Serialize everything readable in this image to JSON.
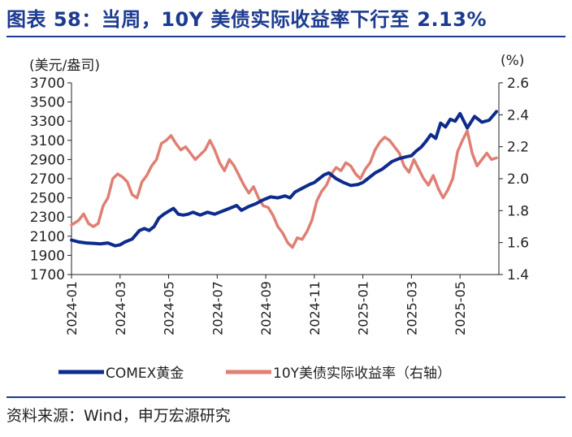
{
  "header": {
    "title": "图表 58：当周，10Y 美债实际收益率下行至 2.13%"
  },
  "footer": {
    "source": "资料来源：Wind，申万宏源研究"
  },
  "chart_data": {
    "type": "line",
    "title": "当周，10Y 美债实际收益率下行至 2.13%",
    "left_axis": {
      "unit": "(美元/盎司)",
      "ylim": [
        1700,
        3700
      ],
      "ticks": [
        1700,
        1900,
        2100,
        2300,
        2500,
        2700,
        2900,
        3100,
        3300,
        3500,
        3700
      ]
    },
    "right_axis": {
      "unit": "(%)",
      "ylim": [
        1.4,
        2.6
      ],
      "ticks": [
        "1.4",
        "1.6",
        "1.8",
        "2.0",
        "2.2",
        "2.4",
        "2.6"
      ]
    },
    "x_ticks": [
      "2024-01",
      "2024-03",
      "2024-05",
      "2024-07",
      "2024-09",
      "2024-11",
      "2025-01",
      "2025-03",
      "2025-05"
    ],
    "x_range_months": [
      0,
      17.6
    ],
    "series": [
      {
        "name": "COMEX黄金",
        "axis": "left",
        "color": "#0d2b8c",
        "x": [
          0,
          0.3,
          0.6,
          0.9,
          1.2,
          1.5,
          1.8,
          2.0,
          2.2,
          2.5,
          2.8,
          3.0,
          3.2,
          3.4,
          3.6,
          3.8,
          4.0,
          4.2,
          4.4,
          4.6,
          4.8,
          5.0,
          5.3,
          5.6,
          5.9,
          6.2,
          6.5,
          6.8,
          7.0,
          7.3,
          7.6,
          7.9,
          8.2,
          8.5,
          8.8,
          9.0,
          9.2,
          9.5,
          9.8,
          10.0,
          10.2,
          10.4,
          10.6,
          10.9,
          11.2,
          11.5,
          11.8,
          12.0,
          12.2,
          12.5,
          12.8,
          13.0,
          13.2,
          13.5,
          13.8,
          14.0,
          14.2,
          14.4,
          14.6,
          14.8,
          15.0,
          15.2,
          15.4,
          15.6,
          15.8,
          16.0,
          16.3,
          16.6,
          16.9,
          17.2,
          17.5
        ],
        "values": [
          2060,
          2040,
          2030,
          2025,
          2020,
          2030,
          2000,
          2010,
          2040,
          2070,
          2160,
          2180,
          2160,
          2200,
          2290,
          2330,
          2360,
          2390,
          2330,
          2320,
          2330,
          2350,
          2320,
          2350,
          2330,
          2360,
          2390,
          2420,
          2370,
          2410,
          2440,
          2480,
          2510,
          2500,
          2520,
          2500,
          2560,
          2600,
          2640,
          2660,
          2700,
          2740,
          2760,
          2700,
          2660,
          2630,
          2640,
          2660,
          2700,
          2760,
          2800,
          2840,
          2880,
          2910,
          2930,
          2940,
          2990,
          3030,
          3090,
          3160,
          3120,
          3280,
          3240,
          3320,
          3300,
          3380,
          3230,
          3350,
          3290,
          3310,
          3400
        ]
      },
      {
        "name": "10Y美债实际收益率（右轴）",
        "axis": "right",
        "color": "#e07f73",
        "x": [
          0,
          0.3,
          0.5,
          0.7,
          0.9,
          1.1,
          1.3,
          1.5,
          1.7,
          1.9,
          2.1,
          2.3,
          2.5,
          2.7,
          2.9,
          3.1,
          3.3,
          3.5,
          3.7,
          3.9,
          4.1,
          4.3,
          4.5,
          4.7,
          4.9,
          5.1,
          5.3,
          5.5,
          5.7,
          5.9,
          6.1,
          6.3,
          6.5,
          6.7,
          6.9,
          7.1,
          7.3,
          7.5,
          7.7,
          7.9,
          8.1,
          8.3,
          8.5,
          8.7,
          8.9,
          9.1,
          9.3,
          9.5,
          9.7,
          9.9,
          10.1,
          10.3,
          10.5,
          10.7,
          10.9,
          11.1,
          11.3,
          11.5,
          11.7,
          11.9,
          12.1,
          12.3,
          12.5,
          12.7,
          12.9,
          13.1,
          13.3,
          13.5,
          13.7,
          13.9,
          14.1,
          14.3,
          14.5,
          14.7,
          14.9,
          15.1,
          15.3,
          15.5,
          15.7,
          15.9,
          16.1,
          16.3,
          16.5,
          16.7,
          16.9,
          17.1,
          17.3,
          17.5
        ],
        "values": [
          1.71,
          1.74,
          1.78,
          1.72,
          1.7,
          1.72,
          1.83,
          1.88,
          2.0,
          2.03,
          2.01,
          1.98,
          1.9,
          1.88,
          1.98,
          2.02,
          2.08,
          2.12,
          2.22,
          2.24,
          2.27,
          2.22,
          2.18,
          2.2,
          2.16,
          2.12,
          2.15,
          2.18,
          2.24,
          2.18,
          2.1,
          2.05,
          2.12,
          2.08,
          2.02,
          1.96,
          1.91,
          1.95,
          1.88,
          1.83,
          1.82,
          1.77,
          1.7,
          1.66,
          1.6,
          1.57,
          1.63,
          1.62,
          1.67,
          1.74,
          1.86,
          1.92,
          1.96,
          2.03,
          2.07,
          2.05,
          2.1,
          2.08,
          2.03,
          2.0,
          2.06,
          2.1,
          2.18,
          2.23,
          2.26,
          2.24,
          2.2,
          2.16,
          2.08,
          2.04,
          2.12,
          2.06,
          2.0,
          1.96,
          2.02,
          1.94,
          1.88,
          1.93,
          2.0,
          2.17,
          2.24,
          2.3,
          2.16,
          2.08,
          2.12,
          2.16,
          2.12,
          2.13
        ]
      }
    ],
    "legend": [
      "COMEX黄金",
      "10Y美债实际收益率（右轴）"
    ],
    "legend_position": "bottom"
  }
}
